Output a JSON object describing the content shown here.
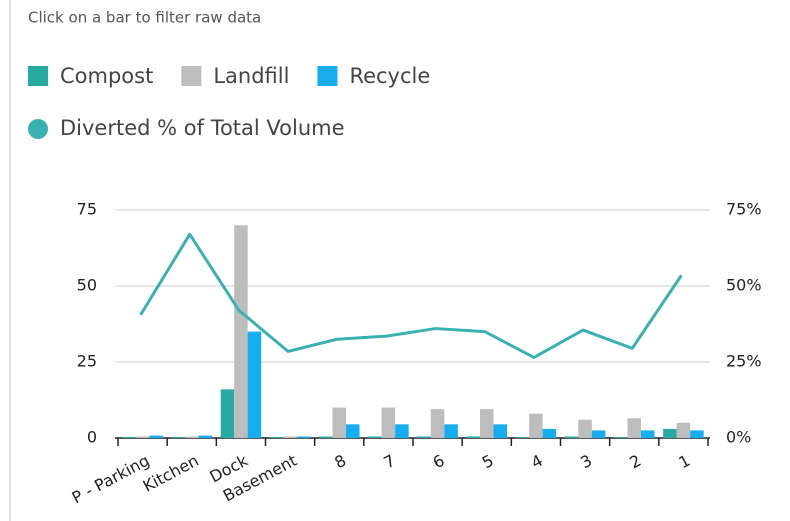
{
  "chart_data": {
    "type": "bar",
    "subtitle": "Click on a bar to filter raw data",
    "categories": [
      "P - Parking",
      "Kitchen",
      "Dock",
      "Basement",
      "8",
      "7",
      "6",
      "5",
      "4",
      "3",
      "2",
      "1"
    ],
    "series": [
      {
        "name": "Compost",
        "color": "#26aaa2",
        "values": [
          0.3,
          0.3,
          16,
          0.3,
          0.5,
          0.5,
          0.5,
          0.5,
          0.3,
          0.5,
          0.3,
          3
        ]
      },
      {
        "name": "Landfill",
        "color": "#bdbdbd",
        "values": [
          0.5,
          0.5,
          70,
          0.5,
          10,
          10,
          9.5,
          9.5,
          8,
          6,
          6.5,
          5
        ]
      },
      {
        "name": "Recycle",
        "color": "#16aef0",
        "values": [
          0.8,
          0.8,
          35,
          0.5,
          4.5,
          4.5,
          4.5,
          4.5,
          3,
          2.5,
          2.5,
          2.5
        ]
      },
      {
        "name": "Diverted % of Total Volume",
        "color": "#3ab1b1",
        "type": "line",
        "axis": "y2",
        "values": [
          40.5,
          67,
          42,
          28.5,
          32.5,
          33.5,
          36,
          35,
          26.5,
          35.5,
          29.5,
          53.5
        ]
      }
    ],
    "ylim": [
      0,
      75
    ],
    "yticks": [
      0,
      25,
      50,
      75
    ],
    "y2lim": [
      0,
      75
    ],
    "y2ticks": [
      {
        "value": 0,
        "label": "0%"
      },
      {
        "value": 25,
        "label": "25%"
      },
      {
        "value": 50,
        "label": "50%"
      },
      {
        "value": 75,
        "label": "75%"
      }
    ],
    "grid": true
  }
}
